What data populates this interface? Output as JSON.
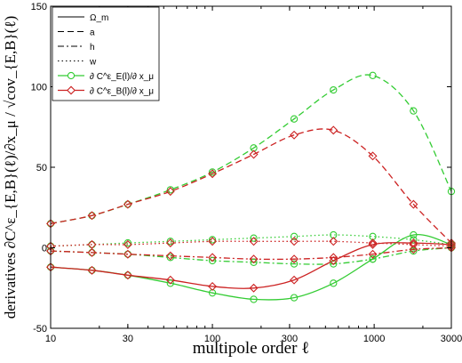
{
  "chart_data": {
    "type": "line",
    "xlabel": "multipole order ℓ",
    "ylabel": "derivatives ∂C^ε_{E,B}(ℓ)/∂x_μ / √cov_{E,B}(ℓ)",
    "xscale": "log",
    "xlim": [
      10,
      3000
    ],
    "ylim": [
      -50,
      150
    ],
    "x_ticks": [
      10,
      30,
      100,
      300,
      1000,
      3000
    ],
    "x_tick_labels": [
      "10",
      "30",
      "100",
      "300",
      "1000",
      "3000"
    ],
    "y_ticks": [
      -50,
      0,
      50,
      100,
      150
    ],
    "y_tick_labels": [
      "-50",
      "0",
      "50",
      "100",
      "150"
    ],
    "grid": false,
    "legend_position": "top-left",
    "legend": [
      {
        "label": "Ω_m",
        "line_style": "solid",
        "color": "#000000"
      },
      {
        "label": "a",
        "line_style": "dashed",
        "color": "#000000"
      },
      {
        "label": "h",
        "line_style": "dash-dot",
        "color": "#000000"
      },
      {
        "label": "w",
        "line_style": "dotted",
        "color": "#000000"
      },
      {
        "label": "∂ C^ε_E(l)/∂ x_μ",
        "marker": "circle",
        "color": "#33cc33"
      },
      {
        "label": "∂ C^ε_B(l)/∂ x_μ",
        "marker": "diamond",
        "color": "#cc2222"
      }
    ],
    "markers_x": [
      10,
      18,
      30,
      55,
      100,
      180,
      320,
      560,
      980,
      1750,
      3000
    ],
    "series": [
      {
        "param": "a",
        "mode": "E",
        "style": "dashed",
        "color": "#33cc33",
        "values": [
          15,
          20,
          27,
          36,
          47,
          62,
          80,
          98,
          107,
          85,
          35
        ]
      },
      {
        "param": "a",
        "mode": "B",
        "style": "dashed",
        "color": "#cc2222",
        "values": [
          15,
          20,
          27,
          35,
          46,
          58,
          70,
          73,
          57,
          27,
          3
        ]
      },
      {
        "param": "w",
        "mode": "E",
        "style": "dotted",
        "color": "#33cc33",
        "values": [
          1,
          2,
          3,
          4,
          5,
          6,
          7,
          8,
          7,
          5,
          2
        ]
      },
      {
        "param": "w",
        "mode": "B",
        "style": "dotted",
        "color": "#cc2222",
        "values": [
          1,
          2,
          2,
          3,
          4,
          4,
          4,
          4,
          3,
          2,
          1
        ]
      },
      {
        "param": "h",
        "mode": "E",
        "style": "dash-dot",
        "color": "#33cc33",
        "values": [
          -2,
          -3,
          -4,
          -6,
          -8,
          -9,
          -10,
          -10,
          -7,
          -2,
          0
        ]
      },
      {
        "param": "h",
        "mode": "B",
        "style": "dash-dot",
        "color": "#cc2222",
        "values": [
          -2,
          -3,
          -4,
          -5,
          -6,
          -7,
          -7,
          -6,
          -4,
          -1,
          0
        ]
      },
      {
        "param": "Ω_m",
        "mode": "E",
        "style": "solid",
        "color": "#33cc33",
        "values": [
          -12,
          -14,
          -17,
          -22,
          -28,
          -32,
          -31,
          -22,
          -7,
          8,
          2
        ]
      },
      {
        "param": "Ω_m",
        "mode": "B",
        "style": "solid",
        "color": "#cc2222",
        "values": [
          -12,
          -14,
          -17,
          -20,
          -24,
          -25,
          -20,
          -8,
          2,
          3,
          2
        ]
      }
    ]
  }
}
